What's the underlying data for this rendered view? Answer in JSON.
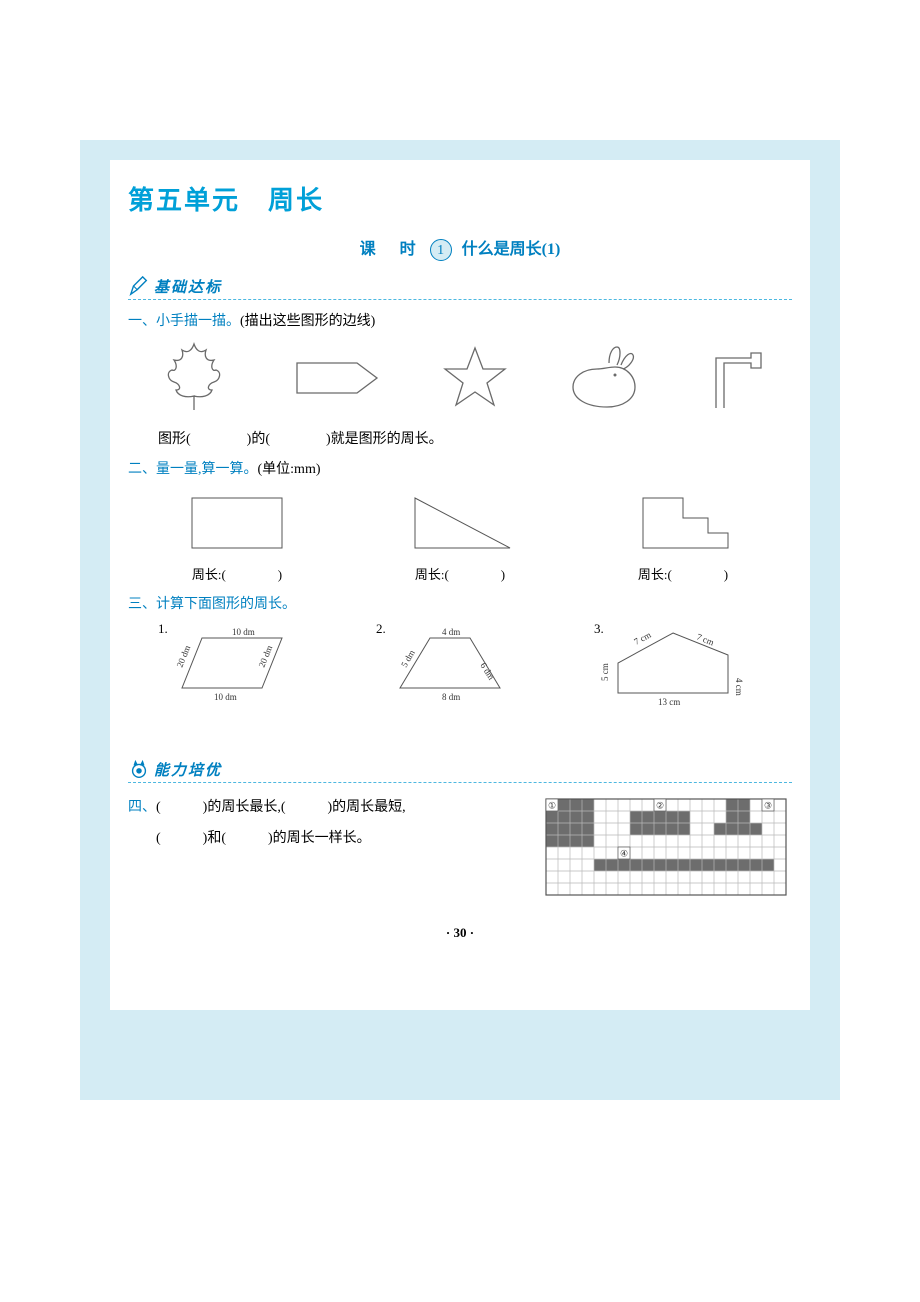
{
  "page": {
    "background_outer": "#d4ecf4",
    "background_inner": "#ffffff",
    "accent_color": "#0080c0",
    "dashed_color": "#4db8e0",
    "text_color": "#000000",
    "page_number": "· 30 ·"
  },
  "unit": {
    "title": "第五单元　周长"
  },
  "lesson": {
    "label": "课　时",
    "number": "1",
    "name": "什么是周长(1)"
  },
  "sections": {
    "basic": "基础达标",
    "advanced": "能力培优"
  },
  "q1": {
    "head_blue": "一、小手描一描。",
    "head_black": "(描出这些图形的边线)",
    "fill_text": "图形(　　　　)的(　　　　)就是图形的周长。",
    "shapes": [
      "maple-leaf",
      "chevron-pentagon",
      "star",
      "rabbit",
      "flag-arrow"
    ]
  },
  "q2": {
    "head_blue": "二、量一量,算一算。",
    "head_black": "(单位:mm)",
    "items": [
      {
        "shape": "rectangle",
        "label": "周长:(　　　　)"
      },
      {
        "shape": "right-triangle",
        "label": "周长:(　　　　)"
      },
      {
        "shape": "step-shape",
        "label": "周长:(　　　　)"
      }
    ]
  },
  "q3": {
    "head_blue": "三、计算下面图形的周长。",
    "items": [
      {
        "num": "1.",
        "type": "parallelogram",
        "dims": {
          "top": "10 dm",
          "bottom": "10 dm",
          "left": "20 dm",
          "right": "20 dm"
        }
      },
      {
        "num": "2.",
        "type": "trapezoid",
        "dims": {
          "top": "4 dm",
          "left": "5 dm",
          "right": "6 dm",
          "bottom": "8 dm"
        }
      },
      {
        "num": "3.",
        "type": "pentagon-irregular",
        "dims": {
          "tl": "7 cm",
          "tr": "7 cm",
          "left": "5 cm",
          "right": "4 cm",
          "bottom": "13 cm"
        }
      }
    ]
  },
  "q4": {
    "line1_blue": "四、",
    "line1_rest": "(　　　)的周长最长,(　　　)的周长最短,",
    "line2": "(　　　)和(　　　)的周长一样长。",
    "grid": {
      "cols": 20,
      "rows": 8,
      "cell": 12,
      "grid_color": "#b8b8b8",
      "fill_color": "#6d6d6d",
      "label_bg": "#ffffff",
      "shapes": {
        "1": {
          "label": "①",
          "cells": [
            [
              0,
              0,
              4,
              4
            ]
          ]
        },
        "2": {
          "label": "②",
          "cells": [
            [
              7,
              1,
              5,
              2
            ]
          ]
        },
        "3": {
          "label": "③",
          "cells": [
            [
              15,
              0,
              2,
              2
            ],
            [
              14,
              2,
              4,
              1
            ]
          ]
        },
        "4": {
          "label": "④",
          "cells": [
            [
              4,
              5,
              15,
              1
            ]
          ]
        }
      }
    }
  }
}
